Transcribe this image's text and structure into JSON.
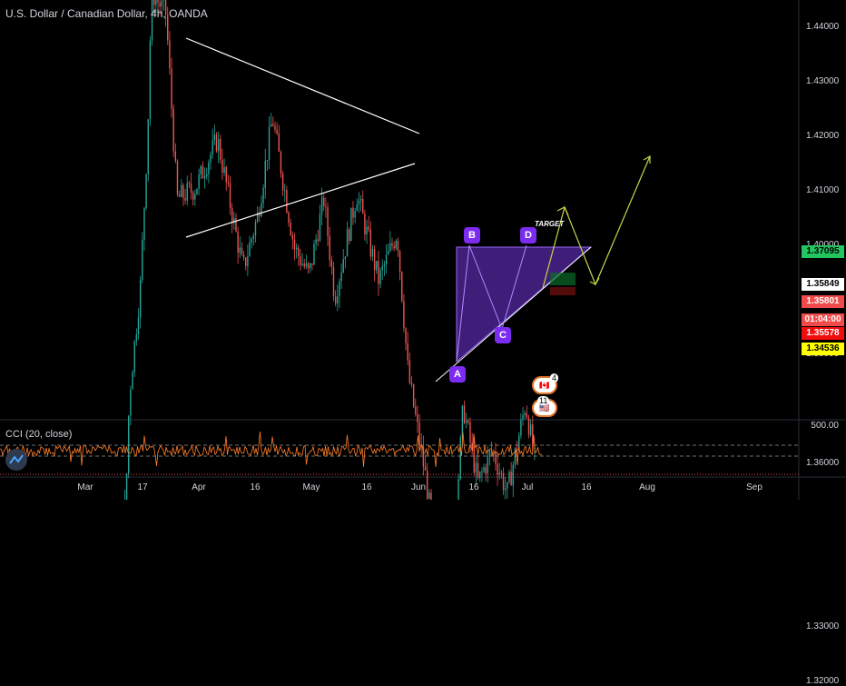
{
  "header": {
    "title": "U.S. Dollar / Canadian Dollar, 4h, OANDA"
  },
  "indicator": {
    "label": "CCI (20, close)",
    "value_label": "500.00"
  },
  "price_axis": {
    "ticks": [
      "1.44000",
      "1.43000",
      "1.42000",
      "1.41000",
      "1.40000",
      "1.39000",
      "1.38000",
      "1.36000",
      "1.33000",
      "1.32000"
    ],
    "tags": [
      {
        "text": "1.37095",
        "bg": "#22c55e",
        "fg": "#000000"
      },
      {
        "text": "1.35849",
        "bg": "#ffffff",
        "fg": "#000000"
      },
      {
        "text": "1.35801",
        "bg": "#f04a4a",
        "fg": "#ffffff"
      },
      {
        "text": "01:04:00",
        "bg": "#f04a4a",
        "fg": "#ffffff"
      },
      {
        "text": "1.35578",
        "bg": "#f00d0d",
        "fg": "#ffffff"
      },
      {
        "text": "1.34536",
        "bg": "#ffff00",
        "fg": "#000000"
      }
    ]
  },
  "time_axis": {
    "ticks": [
      "Mar",
      "17",
      "Apr",
      "16",
      "May",
      "16",
      "Jun",
      "16",
      "Jul",
      "16",
      "Aug",
      "Sep"
    ]
  },
  "pattern": {
    "points": [
      "A",
      "B",
      "C",
      "D"
    ],
    "target_label": "TARGET"
  },
  "events": {
    "flag1_count": "4",
    "flag2_count": "11"
  },
  "colors": {
    "background": "#000000",
    "up": "#26a69a",
    "down": "#ef5350",
    "support": "#ffff00",
    "trendline": "#ffffff",
    "projection": "#c8d44a",
    "pattern_fill": "#7b3cf0",
    "current_price_line": "#f04a4a",
    "cci_line": "#ff7f2a"
  },
  "chart_data": {
    "type": "candlestick",
    "symbol": "USDCAD",
    "interval": "4h",
    "source": "OANDA",
    "ylim": [
      1.315,
      1.448
    ],
    "price_path": [
      [
        "Feb 20",
        1.3305
      ],
      [
        "Feb 27",
        1.3255
      ],
      [
        "Mar 6",
        1.3345
      ],
      [
        "Mar 9",
        1.3445
      ],
      [
        "Mar 12",
        1.3525
      ],
      [
        "Mar 13",
        1.3725
      ],
      [
        "Mar 16",
        1.3925
      ],
      [
        "Mar 18",
        1.4205
      ],
      [
        "Mar 19",
        1.4465
      ],
      [
        "Mar 23",
        1.4425
      ],
      [
        "Mar 26",
        1.4085
      ],
      [
        "Mar 31",
        1.4105
      ],
      [
        "Apr 6",
        1.4195
      ],
      [
        "Apr 13",
        1.3955
      ],
      [
        "Apr 17",
        1.4055
      ],
      [
        "Apr 21",
        1.4235
      ],
      [
        "Apr 27",
        1.3995
      ],
      [
        "May 1",
        1.3945
      ],
      [
        "May 5",
        1.4085
      ],
      [
        "May 8",
        1.3905
      ],
      [
        "May 14",
        1.4095
      ],
      [
        "May 20",
        1.3935
      ],
      [
        "May 25",
        1.4025
      ],
      [
        "May 28",
        1.3765
      ],
      [
        "Jun 2",
        1.3565
      ],
      [
        "Jun 5",
        1.3405
      ],
      [
        "Jun 8",
        1.3405
      ],
      [
        "Jun 10",
        1.3505
      ],
      [
        "Jun 12",
        1.3705
      ],
      [
        "Jun 16",
        1.3565
      ],
      [
        "Jun 20",
        1.3625
      ],
      [
        "Jun 24",
        1.3545
      ],
      [
        "Jun 29",
        1.371
      ],
      [
        "Jul 2",
        1.3585
      ]
    ],
    "support_level": 1.34536,
    "current_price": 1.35801,
    "projection": [
      [
        "Jul 2",
        1.3585
      ],
      [
        "Jul 9",
        1.3825
      ],
      [
        "Jul 14",
        1.3585
      ],
      [
        "Jul 26",
        1.3995
      ]
    ],
    "cci": {
      "name": "CCI (20, close)",
      "upper": 100,
      "lower": -100
    }
  }
}
